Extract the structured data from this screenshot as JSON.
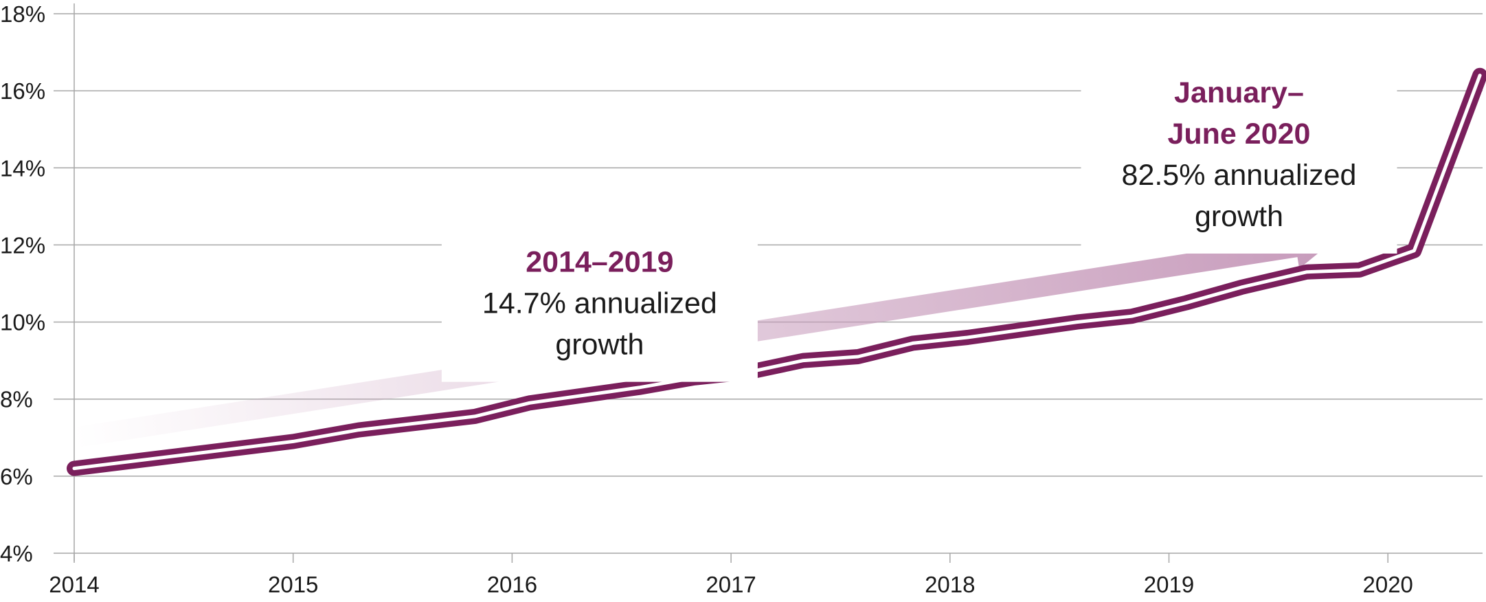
{
  "chart_data": {
    "type": "line",
    "title": "",
    "xlabel": "",
    "ylabel": "",
    "x_ticks": [
      "2014",
      "2015",
      "2016",
      "2017",
      "2018",
      "2019",
      "2020"
    ],
    "y_ticks": [
      "4%",
      "6%",
      "8%",
      "10%",
      "12%",
      "14%",
      "16%",
      "18%"
    ],
    "xlim": [
      2014,
      2020.45
    ],
    "ylim": [
      4,
      18
    ],
    "grid": "horizontal",
    "series": [
      {
        "x": [
          2014.0,
          2014.5,
          2015.0,
          2015.3,
          2015.83,
          2016.08,
          2016.58,
          2016.83,
          2017.08,
          2017.33,
          2017.58,
          2017.83,
          2018.08,
          2018.33,
          2018.58,
          2018.83,
          2019.08,
          2019.33,
          2019.63,
          2019.87,
          2020.12,
          2020.42
        ],
        "y": [
          6.2,
          6.55,
          6.9,
          7.2,
          7.55,
          7.9,
          8.3,
          8.55,
          8.7,
          9.0,
          9.1,
          9.45,
          9.6,
          9.8,
          10.0,
          10.15,
          10.5,
          10.9,
          11.3,
          11.35,
          11.85,
          16.4
        ]
      }
    ],
    "color": "#7a1f5c",
    "trend_arrow": {
      "from": [
        2014.0,
        7.0
      ],
      "to": [
        2019.75,
        12.1
      ],
      "color": "#c79bbb"
    },
    "annotations": [
      {
        "title": "2014–2019",
        "lines": [
          "14.7% annualized",
          "growth"
        ],
        "at": [
          2016.4,
          11.3
        ]
      },
      {
        "title_lines": [
          "January–",
          "June 2020"
        ],
        "lines": [
          "82.5% annualized",
          "growth"
        ],
        "at": [
          2019.32,
          15.7
        ]
      }
    ]
  }
}
